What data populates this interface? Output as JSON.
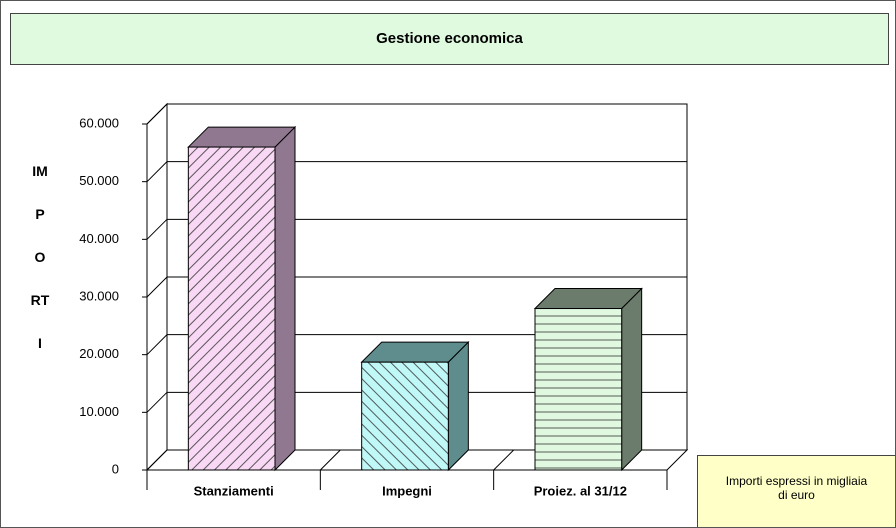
{
  "chart_data": {
    "type": "bar3d",
    "title": "Gestione economica",
    "y_label": "IMPORTI",
    "note": "Importi espressi in migliaia di euro",
    "categories": [
      "Stanziamenti",
      "Impegni",
      "Proiez. al 31/12"
    ],
    "values": [
      56000,
      18700,
      28000
    ],
    "colors": [
      "#f8d8f4",
      "#c0f8f8",
      "#e0f8e0"
    ],
    "side_colors": [
      "#907890",
      "#5f8c8c",
      "#6c7c6c"
    ],
    "ylim": [
      0,
      60000
    ],
    "yticks": [
      0,
      {
        "value": 10000,
        "label": "10.000"
      },
      {
        "value": 20000,
        "label": "20.000"
      },
      {
        "value": 30000,
        "label": "30.000"
      },
      {
        "value": 40000,
        "label": "40.000"
      },
      {
        "value": 50000,
        "label": "50.000"
      },
      {
        "value": 60000,
        "label": "60.000"
      }
    ],
    "grid": true
  }
}
